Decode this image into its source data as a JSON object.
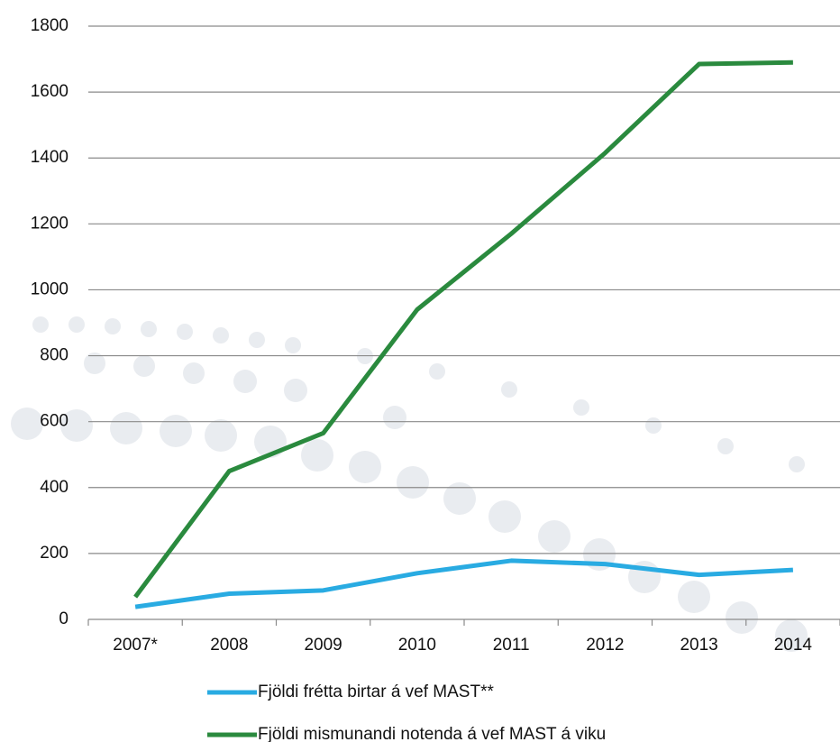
{
  "chart_data": {
    "type": "line",
    "categories": [
      "2007*",
      "2008",
      "2009",
      "2010",
      "2011",
      "2012",
      "2013",
      "2014"
    ],
    "series": [
      {
        "name": "Fjöldi frétta birtar á vef MAST**",
        "color": "#29abe2",
        "values": [
          38,
          78,
          88,
          140,
          178,
          168,
          135,
          150
        ]
      },
      {
        "name": "Fjöldi mismunandi notenda á vef MAST á viku",
        "color": "#2a8a3e",
        "values": [
          68,
          450,
          565,
          940,
          1170,
          1415,
          1685,
          1690
        ]
      }
    ],
    "ylim": [
      0,
      1800
    ],
    "yticks": [
      0,
      200,
      400,
      600,
      800,
      1000,
      1200,
      1400,
      1600,
      1800
    ],
    "grid": true
  }
}
